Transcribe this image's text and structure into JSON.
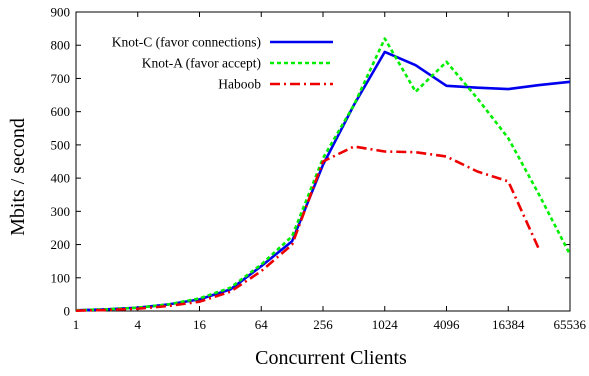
{
  "chart_data": {
    "type": "line",
    "title": "",
    "xlabel": "Concurrent Clients",
    "ylabel": "Mbits / second",
    "x_scale": "log2",
    "x": [
      1,
      2,
      4,
      8,
      16,
      32,
      64,
      128,
      256,
      512,
      1024,
      2048,
      4096,
      8192,
      16384,
      32768,
      65536
    ],
    "xticks": [
      "1",
      "4",
      "16",
      "64",
      "256",
      "1024",
      "4096",
      "16384",
      "65536"
    ],
    "xlim": [
      1,
      65536
    ],
    "ylim": [
      0,
      900
    ],
    "yticks": [
      "0",
      "100",
      "200",
      "300",
      "400",
      "500",
      "600",
      "700",
      "800",
      "900"
    ],
    "grid": false,
    "legend_position": "top-left",
    "series": [
      {
        "name": "Knot-C (favor connections)",
        "color": "#0000ee",
        "dash": "solid",
        "values": [
          2,
          5,
          10,
          20,
          35,
          65,
          135,
          210,
          440,
          620,
          780,
          740,
          678,
          672,
          668,
          680,
          690
        ]
      },
      {
        "name": "Knot-A (favor accept)",
        "color": "#00ee00",
        "dash": "dotted",
        "values": [
          2,
          5,
          10,
          20,
          38,
          70,
          140,
          225,
          460,
          620,
          820,
          660,
          750,
          640,
          520,
          350,
          170
        ]
      },
      {
        "name": "Haboob",
        "color": "#ee0000",
        "dash": "dashdot",
        "values": [
          1,
          3,
          7,
          15,
          28,
          58,
          120,
          200,
          450,
          495,
          480,
          478,
          465,
          420,
          390,
          185,
          null
        ]
      }
    ]
  }
}
